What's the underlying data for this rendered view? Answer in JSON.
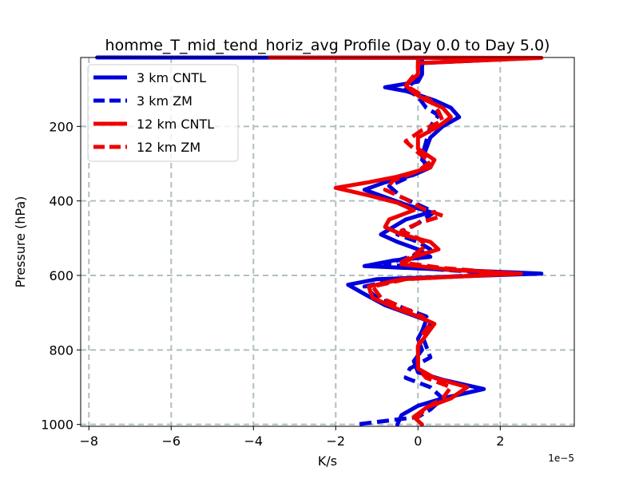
{
  "chart_data": {
    "type": "line",
    "title": "homme_T_mid_tend_horiz_avg Profile (Day 0.0 to Day 5.0)",
    "xlabel": "K/s",
    "ylabel": "Pressure (hPa)",
    "x_offset_label": "1e−5",
    "xlim": [
      -8.2,
      3.8
    ],
    "ylim": [
      1005,
      15
    ],
    "y_inverted": true,
    "grid": true,
    "legend_position": "upper-left",
    "x_ticks": [
      -8,
      -6,
      -4,
      -2,
      0,
      2
    ],
    "x_tick_labels": [
      "−8",
      "−6",
      "−4",
      "−2",
      "0",
      "2"
    ],
    "y_ticks": [
      200,
      400,
      600,
      800,
      1000
    ],
    "y_tick_labels": [
      "200",
      "400",
      "600",
      "800",
      "1000"
    ],
    "colors": {
      "blue": "#0000dd",
      "red": "#ee0000",
      "grid": "#b0bfbf"
    },
    "series": [
      {
        "name": "3 km CNTL",
        "color": "#0000dd",
        "dash": "solid",
        "points": [
          [
            -7.8,
            15
          ],
          [
            2.8,
            16
          ],
          [
            0.1,
            30
          ],
          [
            0.1,
            60
          ],
          [
            0,
            80
          ],
          [
            -0.8,
            95
          ],
          [
            -0.3,
            105
          ],
          [
            0,
            115
          ],
          [
            0.4,
            130
          ],
          [
            0.8,
            150
          ],
          [
            1.0,
            175
          ],
          [
            0.6,
            200
          ],
          [
            0.3,
            230
          ],
          [
            0.2,
            260
          ],
          [
            0.1,
            290
          ],
          [
            0.3,
            310
          ],
          [
            -0.1,
            330
          ],
          [
            -0.8,
            350
          ],
          [
            -1.3,
            370
          ],
          [
            -0.8,
            390
          ],
          [
            -0.3,
            410
          ],
          [
            0.3,
            430
          ],
          [
            -0.3,
            450
          ],
          [
            -0.6,
            470
          ],
          [
            -0.9,
            490
          ],
          [
            -0.5,
            510
          ],
          [
            0,
            530
          ],
          [
            0.3,
            550
          ],
          [
            -0.6,
            560
          ],
          [
            -1.3,
            575
          ],
          [
            0.8,
            585
          ],
          [
            3.0,
            595
          ],
          [
            -1.0,
            610
          ],
          [
            -1.7,
            625
          ],
          [
            -1.3,
            650
          ],
          [
            -0.8,
            680
          ],
          [
            -0.3,
            700
          ],
          [
            0.2,
            720
          ],
          [
            0.1,
            750
          ],
          [
            0,
            770
          ],
          [
            0.1,
            800
          ],
          [
            -0.1,
            830
          ],
          [
            0,
            860
          ],
          [
            0.6,
            880
          ],
          [
            1.6,
            905
          ],
          [
            0.6,
            930
          ],
          [
            0,
            950
          ],
          [
            -0.4,
            975
          ],
          [
            -0.5,
            1000
          ]
        ]
      },
      {
        "name": "3 km ZM",
        "color": "#0000dd",
        "dash": "dashed",
        "points": [
          [
            0.1,
            20
          ],
          [
            0.1,
            40
          ],
          [
            0,
            70
          ],
          [
            -0.3,
            100
          ],
          [
            0,
            120
          ],
          [
            0.2,
            150
          ],
          [
            0.5,
            170
          ],
          [
            0.3,
            200
          ],
          [
            0.2,
            240
          ],
          [
            0.1,
            280
          ],
          [
            0.2,
            310
          ],
          [
            -0.2,
            335
          ],
          [
            -0.7,
            360
          ],
          [
            -0.4,
            390
          ],
          [
            0,
            410
          ],
          [
            0.4,
            430
          ],
          [
            0,
            460
          ],
          [
            -0.5,
            490
          ],
          [
            0,
            510
          ],
          [
            0.3,
            530
          ],
          [
            -0.2,
            550
          ],
          [
            -0.8,
            570
          ],
          [
            0.6,
            585
          ],
          [
            2.2,
            595
          ],
          [
            -0.5,
            610
          ],
          [
            -1.3,
            630
          ],
          [
            -1.0,
            660
          ],
          [
            -0.3,
            690
          ],
          [
            0.2,
            710
          ],
          [
            0.3,
            730
          ],
          [
            0.1,
            760
          ],
          [
            0.2,
            790
          ],
          [
            0.3,
            820
          ],
          [
            -0.2,
            850
          ],
          [
            -0.3,
            875
          ],
          [
            0.3,
            900
          ],
          [
            0.6,
            930
          ],
          [
            0.3,
            960
          ],
          [
            0,
            980
          ],
          [
            -1.5,
            1000
          ]
        ]
      },
      {
        "name": "12 km CNTL",
        "color": "#ee0000",
        "dash": "solid",
        "points": [
          [
            -3.6,
            15
          ],
          [
            3.0,
            16
          ],
          [
            0,
            30
          ],
          [
            0,
            60
          ],
          [
            -0.3,
            90
          ],
          [
            -0.1,
            110
          ],
          [
            0.2,
            130
          ],
          [
            0.6,
            150
          ],
          [
            0.8,
            175
          ],
          [
            0.5,
            200
          ],
          [
            0,
            230
          ],
          [
            0,
            260
          ],
          [
            0.4,
            290
          ],
          [
            0.3,
            310
          ],
          [
            -0.5,
            335
          ],
          [
            -1.2,
            350
          ],
          [
            -2.0,
            365
          ],
          [
            -1.2,
            385
          ],
          [
            -0.5,
            405
          ],
          [
            -0.1,
            425
          ],
          [
            -0.7,
            450
          ],
          [
            -0.8,
            470
          ],
          [
            -0.4,
            490
          ],
          [
            0.3,
            510
          ],
          [
            0.5,
            530
          ],
          [
            -0.1,
            550
          ],
          [
            -0.4,
            570
          ],
          [
            0.8,
            585
          ],
          [
            2.5,
            595
          ],
          [
            -0.4,
            610
          ],
          [
            -1.2,
            630
          ],
          [
            -1.1,
            660
          ],
          [
            -0.5,
            690
          ],
          [
            0,
            710
          ],
          [
            0.4,
            730
          ],
          [
            0.2,
            760
          ],
          [
            0,
            790
          ],
          [
            0,
            820
          ],
          [
            0,
            850
          ],
          [
            0.4,
            875
          ],
          [
            1.2,
            900
          ],
          [
            0.8,
            930
          ],
          [
            0.2,
            955
          ],
          [
            -0.1,
            980
          ],
          [
            0.1,
            1000
          ]
        ]
      },
      {
        "name": "12 km ZM",
        "color": "#ee0000",
        "dash": "dashed",
        "points": [
          [
            0,
            20
          ],
          [
            0,
            50
          ],
          [
            -0.3,
            90
          ],
          [
            0,
            110
          ],
          [
            0.3,
            130
          ],
          [
            0.5,
            160
          ],
          [
            0.6,
            185
          ],
          [
            0.1,
            210
          ],
          [
            -0.3,
            240
          ],
          [
            0,
            270
          ],
          [
            0.3,
            295
          ],
          [
            0,
            320
          ],
          [
            -0.6,
            345
          ],
          [
            -0.8,
            370
          ],
          [
            -0.3,
            395
          ],
          [
            0.1,
            420
          ],
          [
            0.6,
            440
          ],
          [
            0,
            460
          ],
          [
            -0.4,
            480
          ],
          [
            0,
            500
          ],
          [
            0.2,
            520
          ],
          [
            -0.1,
            545
          ],
          [
            -0.4,
            565
          ],
          [
            0.6,
            580
          ],
          [
            2.3,
            595
          ],
          [
            -0.3,
            610
          ],
          [
            -1.1,
            630
          ],
          [
            -0.9,
            660
          ],
          [
            -0.3,
            690
          ],
          [
            0.1,
            710
          ],
          [
            0.3,
            730
          ],
          [
            0.1,
            760
          ],
          [
            0,
            790
          ],
          [
            0,
            820
          ],
          [
            0,
            850
          ],
          [
            0.2,
            875
          ],
          [
            0.8,
            900
          ],
          [
            0.6,
            930
          ],
          [
            0.2,
            955
          ],
          [
            0,
            980
          ],
          [
            -0.1,
            1000
          ]
        ]
      }
    ]
  }
}
